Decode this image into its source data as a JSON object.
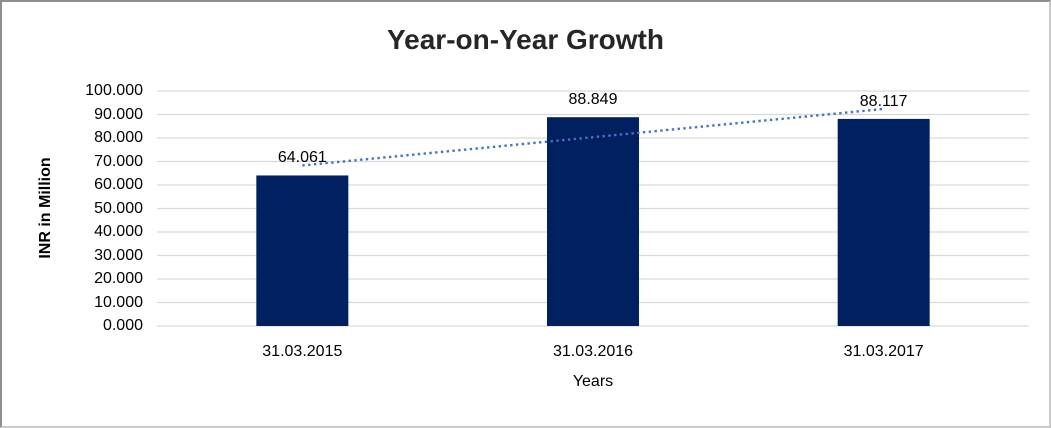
{
  "chart_data": {
    "type": "bar",
    "title": "Year-on-Year Growth",
    "xlabel": "Years",
    "ylabel": "INR in Million",
    "categories": [
      "31.03.2015",
      "31.03.2016",
      "31.03.2017"
    ],
    "values": [
      64.061,
      88.849,
      88.117
    ],
    "value_labels": [
      "64.061",
      "88.849",
      "88.117"
    ],
    "ylim": [
      0,
      100
    ],
    "ytick_step": 10,
    "ytick_labels": [
      "0.000",
      "10.000",
      "20.000",
      "30.000",
      "40.000",
      "50.000",
      "60.000",
      "70.000",
      "80.000",
      "90.000",
      "100.000"
    ],
    "grid": "horizontal-on",
    "legend": "none",
    "trendline": {
      "style": "dotted",
      "fit": "linear"
    },
    "colors": {
      "bar": "#002060",
      "trendline": "#4472C4",
      "gridline": "#D9D9D9",
      "title_text": "#262626",
      "axis_text": "#000000"
    }
  }
}
